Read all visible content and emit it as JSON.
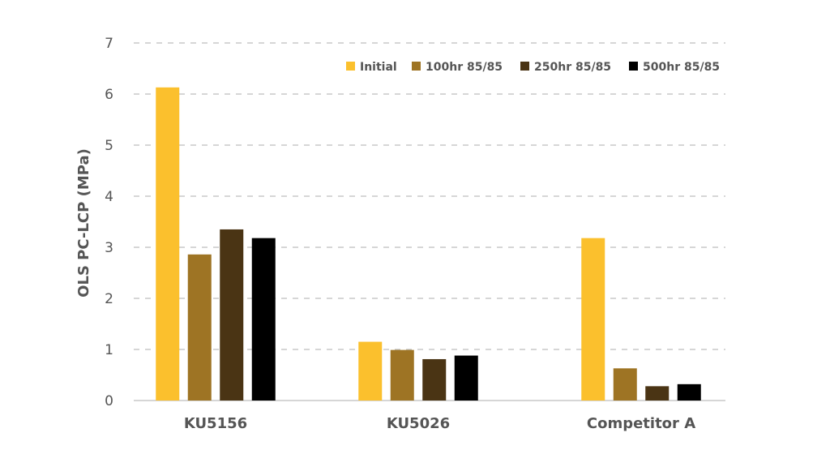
{
  "chart_data": {
    "type": "bar",
    "title": "",
    "xlabel": "",
    "ylabel": "OLS PC-LCP (MPa)",
    "ylim": [
      0,
      7
    ],
    "yticks": [
      "0",
      "1",
      "2",
      "3",
      "4",
      "5",
      "6",
      "7"
    ],
    "grid": true,
    "legend_position": "top-right",
    "categories": [
      "KU5156",
      "KU5026",
      "Competitor A"
    ],
    "series": [
      {
        "name": "Initial",
        "color": "#FBC02D",
        "values": [
          6.13,
          1.15,
          3.18
        ]
      },
      {
        "name": "100hr 85/85",
        "color": "#9E7424",
        "values": [
          2.86,
          0.99,
          0.63
        ]
      },
      {
        "name": "250hr 85/85",
        "color": "#4A3414",
        "values": [
          3.35,
          0.81,
          0.28
        ]
      },
      {
        "name": "500hr 85/85",
        "color": "#000000",
        "values": [
          3.18,
          0.88,
          0.32
        ]
      }
    ]
  }
}
